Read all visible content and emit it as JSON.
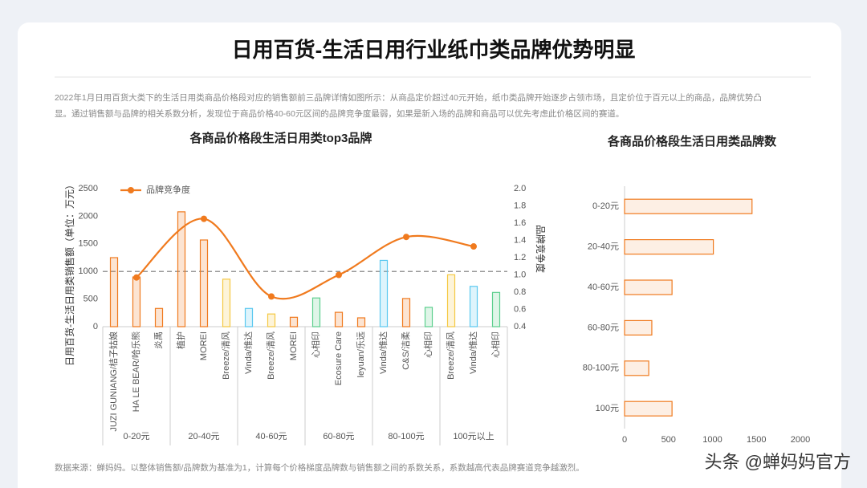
{
  "header": {
    "title": "日用百货-生活日用行业纸巾类品牌优势明显"
  },
  "description": [
    "2022年1月日用百货大类下的生活日用类商品价格段对应的销售额前三品牌详情如图所示：从商品定价超过40元开始，纸巾类品牌开始逐步占领市场，且定价位于百元以上的商品，品牌优势凸",
    "显。通过销售额与品牌的相关系数分析，发现位于商品价格40-60元区间的品牌竞争度最弱，如果是新入场的品牌和商品可以优先考虑此价格区间的赛道。"
  ],
  "footer": "数据来源：蝉妈妈。以整体销售额/品牌数为基准为1，计算每个价格梯度品牌数与销售额之间的系数关系，系数越高代表品牌赛道竞争越激烈。",
  "watermark": "头条 @蝉妈妈官方",
  "chart_data": [
    {
      "type": "bar",
      "title": "各商品价格段生活日用类top3品牌",
      "y_label": "日用百货-生活日用类销售额（单位：万元）",
      "y2_label": "品牌竞争度",
      "categories": [
        "JUZI GUNIANG/桔子姑娘",
        "HA LE BEAR/哈乐熊",
        "炎禹",
        "植护",
        "MOREI",
        "Breeze/清风",
        "Vinda/维达",
        "Breeze/清风",
        "MOREI",
        "心相印",
        "Ecosure Care",
        "leyuan/乐远",
        "Vinda/维达",
        "C&S/洁柔",
        "心相印",
        "Breeze/清风",
        "Vinda/维达",
        "心相印"
      ],
      "category_groups": [
        "0-20元",
        "20-40元",
        "40-60元",
        "60-80元",
        "80-100元",
        "100元以上"
      ],
      "values": [
        1250,
        900,
        330,
        2080,
        1570,
        860,
        330,
        230,
        170,
        520,
        260,
        160,
        1200,
        510,
        350,
        940,
        730,
        620
      ],
      "colors": [
        "#f07a1e",
        "#f07a1e",
        "#f07a1e",
        "#f07a1e",
        "#f07a1e",
        "#f5c842",
        "#5bc8f0",
        "#f5c842",
        "#f07a1e",
        "#5dcf8e",
        "#f07a1e",
        "#f07a1e",
        "#5bc8f0",
        "#f07a1e",
        "#5dcf8e",
        "#f5c842",
        "#5bc8f0",
        "#5dcf8e"
      ],
      "line": {
        "name": "品牌竞争度",
        "color": "#f07a1e",
        "values": [
          0.97,
          1.65,
          0.75,
          1.0,
          1.44,
          1.33
        ],
        "axis": "y2"
      },
      "reference_line": 1000,
      "ylim": [
        0,
        2500
      ],
      "yticks": [
        0,
        500,
        1000,
        1500,
        2000,
        2500
      ],
      "y2lim": [
        0.4,
        2.0
      ],
      "y2ticks": [
        0.4,
        0.6,
        0.8,
        {
          "value": 1.0,
          "label": "1.0"
        },
        1.2,
        1.4,
        1.6,
        1.8,
        {
          "value": 2.0,
          "label": "2.0"
        }
      ]
    },
    {
      "type": "hbar",
      "title": "各商品价格段生活日用类品牌数",
      "categories": [
        "0-20元",
        "20-40元",
        "40-60元",
        "60-80元",
        "80-100元",
        "100元"
      ],
      "values": [
        1450,
        1010,
        540,
        310,
        275,
        540
      ],
      "color": "#f07a1e",
      "xlim": [
        0,
        2000
      ],
      "xticks": [
        0,
        500,
        1000,
        1500,
        2000
      ]
    }
  ]
}
